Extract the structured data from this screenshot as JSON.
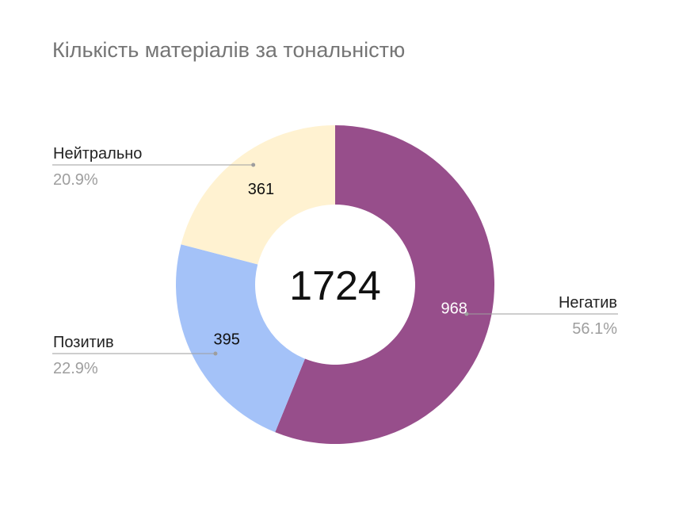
{
  "chart_data": {
    "type": "pie",
    "variant": "donut",
    "title": "Кількість матеріалів за тональністю",
    "total": 1724,
    "slices": [
      {
        "name": "Негатив",
        "value": 968,
        "percent": "56.1%",
        "color": "#974e8b",
        "value_color": "#ffffff"
      },
      {
        "name": "Позитив",
        "value": 395,
        "percent": "22.9%",
        "color": "#a4c2f8",
        "value_color": "#111111"
      },
      {
        "name": "Нейтрально",
        "value": 361,
        "percent": "20.9%",
        "color": "#fff2d1",
        "value_color": "#111111"
      }
    ],
    "legend": "none"
  }
}
